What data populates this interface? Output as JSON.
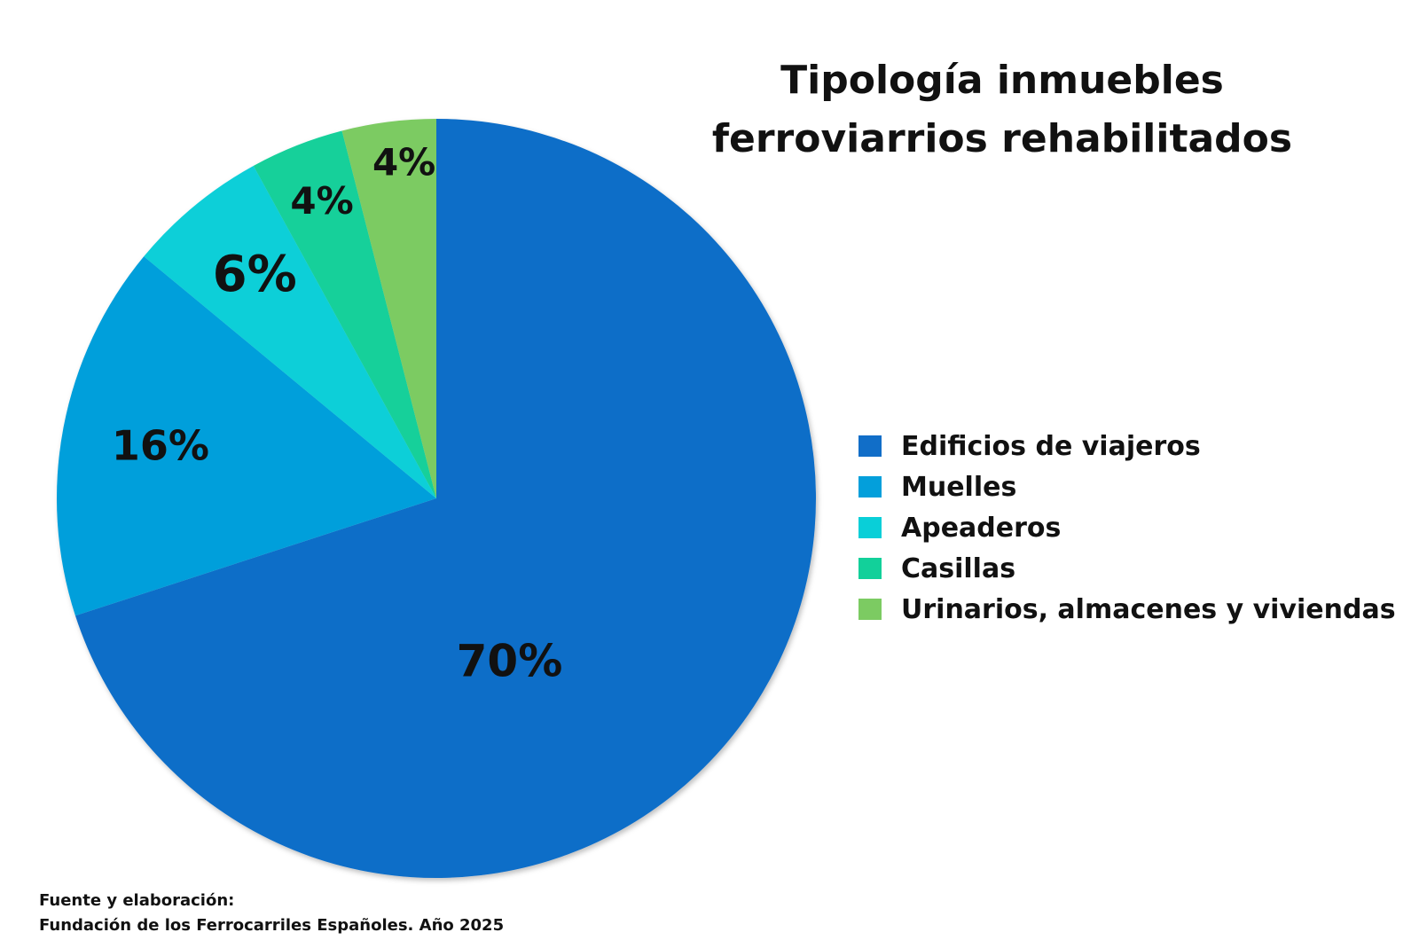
{
  "chart_data": {
    "type": "pie",
    "title": [
      "Tipología inmuebles",
      "ferroviarrios rehabilitados"
    ],
    "categories": [
      "Edificios de viajeros",
      "Muelles",
      "Apeaderos",
      "Casillas",
      "Urinarios, almacenes y viviendas"
    ],
    "values": [
      70,
      16,
      6,
      4,
      4
    ],
    "data_labels": [
      "70%",
      "16%",
      "6%",
      "4%",
      "4%"
    ],
    "colors": [
      "#116EC8",
      "#039FDB",
      "#09CFD8",
      "#12D09A",
      "#7CCB62"
    ],
    "start": "12 o'clock",
    "direction": "clockwise",
    "legend_position": "right"
  },
  "source": {
    "line1": "Fuente y elaboración:",
    "line2": "Fundación de los Ferrocarriles Españoles. Año 2025"
  }
}
